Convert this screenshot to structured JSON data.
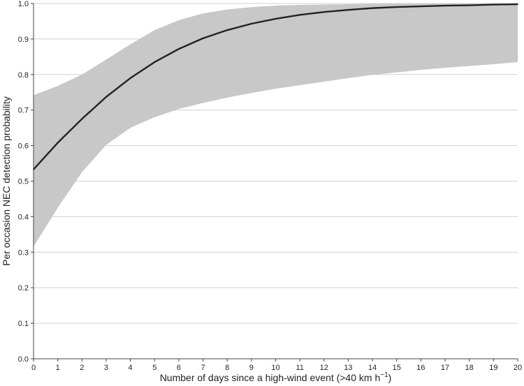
{
  "chart_data": {
    "type": "line",
    "xlabel": "Number of days since a high-wind event (>40 km h",
    "xlabel_sup": "−1",
    "xlabel_close": ")",
    "ylabel": "Per occasion NEC detection probability",
    "xlim": [
      0,
      20
    ],
    "ylim": [
      0.0,
      1.0
    ],
    "x_ticks": [
      0,
      1,
      2,
      3,
      4,
      5,
      6,
      7,
      8,
      9,
      10,
      11,
      12,
      13,
      14,
      15,
      16,
      17,
      18,
      19,
      20
    ],
    "x_tick_labels": [
      "0",
      "1",
      "2",
      "3",
      "4",
      "5",
      "6",
      "7",
      "8",
      "9",
      "10",
      "11",
      "12",
      "13",
      "14",
      "15",
      "16",
      "17",
      "18",
      "19",
      "20"
    ],
    "y_ticks": [
      0.0,
      0.1,
      0.2,
      0.3,
      0.4,
      0.5,
      0.6,
      0.7,
      0.8,
      0.9,
      1.0
    ],
    "y_tick_labels": [
      "0.0",
      "0.1",
      "0.2",
      "0.3",
      "0.4",
      "0.5",
      "0.6",
      "0.7",
      "0.8",
      "0.9",
      "1.0"
    ],
    "grid": "horizontal",
    "x": [
      0,
      1,
      2,
      3,
      4,
      5,
      6,
      7,
      8,
      9,
      10,
      11,
      12,
      13,
      14,
      15,
      16,
      17,
      18,
      19,
      20
    ],
    "series": [
      {
        "values": [
          0.533,
          0.608,
          0.675,
          0.737,
          0.79,
          0.835,
          0.872,
          0.902,
          0.925,
          0.943,
          0.957,
          0.968,
          0.976,
          0.982,
          0.987,
          0.99,
          0.992,
          0.994,
          0.995,
          0.997,
          0.998
        ],
        "lower": [
          0.315,
          0.425,
          0.525,
          0.602,
          0.65,
          0.68,
          0.703,
          0.72,
          0.735,
          0.748,
          0.76,
          0.77,
          0.78,
          0.79,
          0.799,
          0.806,
          0.813,
          0.819,
          0.824,
          0.829,
          0.835
        ],
        "upper": [
          0.742,
          0.768,
          0.8,
          0.842,
          0.885,
          0.925,
          0.953,
          0.972,
          0.983,
          0.99,
          0.994,
          0.996,
          0.997,
          0.998,
          0.999,
          0.999,
          1.0,
          1.0,
          1.0,
          1.0,
          1.0
        ]
      }
    ],
    "colors": {
      "line": "#222222",
      "band": "#c8c8c8",
      "grid": "#d0d0d0",
      "axis": "#444444"
    }
  }
}
